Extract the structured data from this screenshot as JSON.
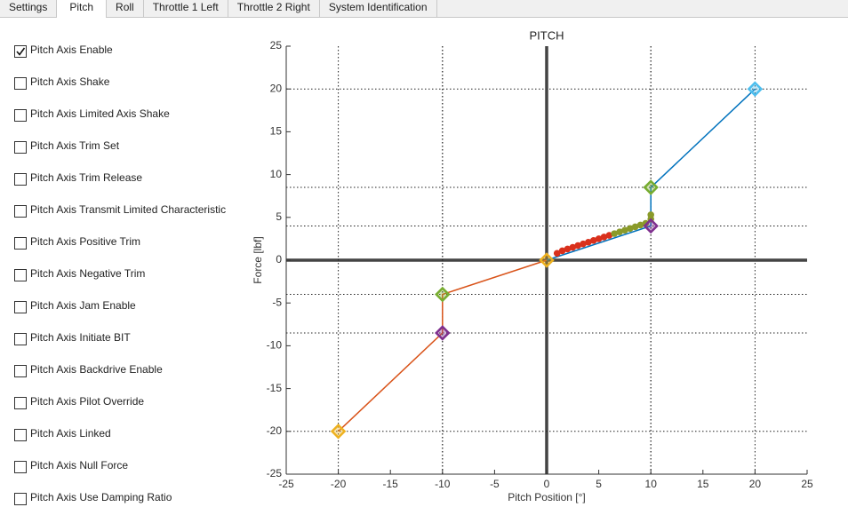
{
  "tabs": [
    {
      "label": "Settings"
    },
    {
      "label": "Pitch"
    },
    {
      "label": "Roll"
    },
    {
      "label": "Throttle 1 Left"
    },
    {
      "label": "Throttle 2 Right"
    },
    {
      "label": "System Identification"
    }
  ],
  "selected_tab": 1,
  "checkboxes": [
    {
      "label": "Pitch Axis Enable",
      "checked": true
    },
    {
      "label": "Pitch Axis Shake",
      "checked": false
    },
    {
      "label": "Pitch Axis Limited Axis Shake",
      "checked": false
    },
    {
      "label": "Pitch Axis Trim Set",
      "checked": false
    },
    {
      "label": "Pitch Axis Trim Release",
      "checked": false
    },
    {
      "label": "Pitch Axis Transmit Limited Characteristic",
      "checked": false
    },
    {
      "label": "Pitch Axis Positive Trim",
      "checked": false
    },
    {
      "label": "Pitch Axis Negative Trim",
      "checked": false
    },
    {
      "label": "Pitch Axis Jam Enable",
      "checked": false
    },
    {
      "label": "Pitch Axis Initiate BIT",
      "checked": false
    },
    {
      "label": "Pitch Axis Backdrive Enable",
      "checked": false
    },
    {
      "label": "Pitch Axis Pilot Override",
      "checked": false
    },
    {
      "label": "Pitch Axis Linked",
      "checked": false
    },
    {
      "label": "Pitch Axis Null Force",
      "checked": false
    },
    {
      "label": "Pitch Axis Use Damping Ratio",
      "checked": false
    }
  ],
  "chart_data": {
    "type": "line",
    "title": "PITCH",
    "x_label": "Pitch Position [°]",
    "y_label": "Force [lbf]",
    "xlim": [
      -25,
      25
    ],
    "ylim": [
      -25,
      25
    ],
    "xticks": [
      -25,
      -20,
      -15,
      -10,
      -5,
      0,
      5,
      10,
      15,
      20,
      25
    ],
    "yticks": [
      -25,
      -20,
      -15,
      -10,
      -5,
      0,
      5,
      10,
      15,
      20,
      25
    ],
    "series": [
      {
        "kind": "line",
        "color": "#0072bd",
        "x": [
          0,
          10,
          10,
          20
        ],
        "values": [
          0,
          4,
          8.5,
          20
        ]
      },
      {
        "kind": "line",
        "color": "#d95319",
        "x": [
          0,
          -10,
          -10,
          -20
        ],
        "values": [
          0,
          -4,
          -8.5,
          -20
        ]
      },
      {
        "kind": "dots",
        "color": "#d9301c",
        "x": [
          1,
          1.5,
          2,
          2.5,
          3,
          3.5,
          4,
          4.5,
          5,
          5.5,
          6
        ],
        "values": [
          0.8,
          1.1,
          1.3,
          1.5,
          1.7,
          1.9,
          2.1,
          2.3,
          2.5,
          2.7,
          2.9
        ]
      },
      {
        "kind": "dots",
        "color": "#8a9a2a",
        "x": [
          6.5,
          7,
          7.5,
          8,
          8.5,
          9,
          9.5,
          10,
          10
        ],
        "values": [
          3.1,
          3.3,
          3.5,
          3.7,
          3.9,
          4.1,
          4.3,
          4.8,
          5.3
        ]
      },
      {
        "kind": "diamonds",
        "colors": [
          "#4dbeee",
          "#77ac30",
          "#7e2f8e",
          "#edb120",
          "#77ac30",
          "#7e2f8e",
          "#edb120"
        ],
        "x": [
          20,
          10,
          10,
          0,
          -10,
          -10,
          -20
        ],
        "values": [
          20,
          8.5,
          4,
          0,
          -4,
          -8.5,
          -20
        ]
      }
    ]
  }
}
